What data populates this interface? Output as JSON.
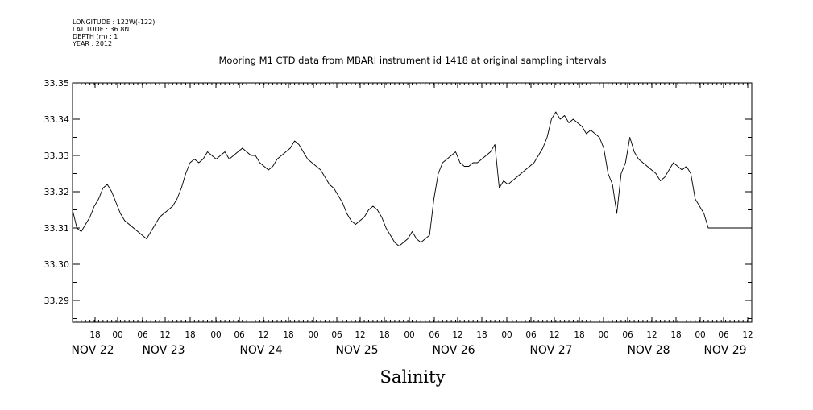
{
  "header": {
    "longitude": "LONGITUDE : 122W(-122)",
    "latitude": "LATITUDE : 36.8N",
    "depth": "DEPTH (m) : 1",
    "year": "YEAR : 2012"
  },
  "colors": {
    "line": "#000000",
    "background": "#ffffff"
  },
  "chart_data": {
    "type": "line",
    "title": "Mooring M1 CTD data from MBARI instrument id 1418 at original sampling intervals",
    "xlabel": "Salinity",
    "ylabel": "",
    "xlim": [
      13,
      169
    ],
    "ylim": [
      33.284,
      33.35
    ],
    "y_ticks": [
      "33.35",
      "33.34",
      "33.33",
      "33.32",
      "33.31",
      "33.30",
      "33.29"
    ],
    "y_tick_values": [
      33.35,
      33.34,
      33.33,
      33.32,
      33.31,
      33.3,
      33.29
    ],
    "x_hour_ticks": [
      {
        "x": 18,
        "label": "18"
      },
      {
        "x": 24,
        "label": "00"
      },
      {
        "x": 30,
        "label": "06"
      },
      {
        "x": 36,
        "label": "12"
      },
      {
        "x": 42,
        "label": "18"
      },
      {
        "x": 48,
        "label": "00"
      },
      {
        "x": 54,
        "label": "06"
      },
      {
        "x": 60,
        "label": "12"
      },
      {
        "x": 66,
        "label": "18"
      },
      {
        "x": 72,
        "label": "00"
      },
      {
        "x": 78,
        "label": "06"
      },
      {
        "x": 84,
        "label": "12"
      },
      {
        "x": 90,
        "label": "18"
      },
      {
        "x": 96,
        "label": "00"
      },
      {
        "x": 102,
        "label": "06"
      },
      {
        "x": 108,
        "label": "12"
      },
      {
        "x": 114,
        "label": "18"
      },
      {
        "x": 120,
        "label": "00"
      },
      {
        "x": 126,
        "label": "06"
      },
      {
        "x": 132,
        "label": "12"
      },
      {
        "x": 138,
        "label": "18"
      },
      {
        "x": 144,
        "label": "00"
      },
      {
        "x": 150,
        "label": "06"
      },
      {
        "x": 156,
        "label": "12"
      },
      {
        "x": 162,
        "label": "18"
      },
      {
        "x": 168,
        "label": "00"
      },
      {
        "x": 174,
        "label": "06"
      },
      {
        "x": 180,
        "label": "12"
      }
    ],
    "x_day_labels": [
      {
        "x": 18,
        "label": "NOV 22"
      },
      {
        "x": 42,
        "label": "NOV 23"
      },
      {
        "x": 66,
        "label": "NOV 24"
      },
      {
        "x": 90,
        "label": "NOV 25"
      },
      {
        "x": 114,
        "label": "NOV 26"
      },
      {
        "x": 138,
        "label": "NOV 27"
      },
      {
        "x": 162,
        "label": "NOV 28"
      },
      {
        "x": 180,
        "label": "NOV 29"
      }
    ],
    "series": [
      {
        "x": [
          13,
          14,
          15,
          16,
          17,
          18,
          19,
          20,
          21,
          22,
          23,
          24,
          25,
          26,
          27,
          28,
          29,
          30,
          31,
          32,
          33,
          34,
          35,
          36,
          37,
          38,
          39,
          40,
          41,
          42,
          43,
          44,
          45,
          46,
          47,
          48,
          49,
          50,
          51,
          52,
          53,
          54,
          55,
          56,
          57,
          58,
          59,
          60,
          61,
          62,
          63,
          64,
          65,
          66,
          67,
          68,
          69,
          70,
          71,
          72,
          73,
          74,
          75,
          76,
          77,
          78,
          79,
          80,
          81,
          82,
          83,
          84,
          85,
          86,
          87,
          88,
          89,
          90,
          91,
          92,
          93,
          94,
          95,
          96,
          97,
          98,
          99,
          100,
          101,
          102,
          103,
          104,
          105,
          106,
          107,
          108,
          109,
          110,
          111,
          112,
          113,
          114,
          115,
          116,
          117,
          118,
          119,
          120,
          121,
          122,
          123,
          124,
          125,
          126,
          127,
          128,
          129,
          130,
          131,
          132,
          133,
          134,
          135,
          136,
          137,
          138,
          139,
          140,
          141,
          142,
          143,
          144,
          145,
          146,
          147,
          148,
          149,
          150,
          151,
          152,
          153,
          154,
          155,
          156,
          157,
          158,
          159,
          160,
          161,
          162,
          163,
          164,
          165,
          166,
          167,
          168,
          169
        ],
        "y": [
          33.315,
          33.31,
          33.309,
          33.311,
          33.313,
          33.316,
          33.318,
          33.321,
          33.322,
          33.32,
          33.317,
          33.314,
          33.312,
          33.311,
          33.31,
          33.309,
          33.308,
          33.307,
          33.309,
          33.311,
          33.313,
          33.314,
          33.315,
          33.316,
          33.318,
          33.321,
          33.325,
          33.328,
          33.329,
          33.328,
          33.329,
          33.331,
          33.33,
          33.329,
          33.33,
          33.331,
          33.329,
          33.33,
          33.331,
          33.332,
          33.331,
          33.33,
          33.33,
          33.328,
          33.327,
          33.326,
          33.327,
          33.329,
          33.33,
          33.331,
          33.332,
          33.334,
          33.333,
          33.331,
          33.329,
          33.328,
          33.327,
          33.326,
          33.324,
          33.322,
          33.321,
          33.319,
          33.317,
          33.314,
          33.312,
          33.311,
          33.312,
          33.313,
          33.315,
          33.316,
          33.315,
          33.313,
          33.31,
          33.308,
          33.306,
          33.305,
          33.306,
          33.307,
          33.309,
          33.307,
          33.306,
          33.307,
          33.308,
          33.318,
          33.325,
          33.328,
          33.329,
          33.33,
          33.331,
          33.328,
          33.327,
          33.327,
          33.328,
          33.328,
          33.329,
          33.33,
          33.331,
          33.333,
          33.321,
          33.323,
          33.322,
          33.323,
          33.324,
          33.325,
          33.326,
          33.327,
          33.328,
          33.33,
          33.332,
          33.335,
          33.34,
          33.342,
          33.34,
          33.341,
          33.339,
          33.34,
          33.339,
          33.338,
          33.336,
          33.337,
          33.336,
          33.335,
          33.332,
          33.325,
          33.322,
          33.314,
          33.325,
          33.328,
          33.335,
          33.331,
          33.329,
          33.328,
          33.327,
          33.326,
          33.325,
          33.323,
          33.324,
          33.326,
          33.328,
          33.327,
          33.326,
          33.327,
          33.325,
          33.318,
          33.316,
          33.314,
          33.31,
          33.31,
          33.31,
          33.31,
          33.31,
          33.31,
          33.31,
          33.31,
          33.31,
          33.31,
          33.31
        ]
      }
    ]
  }
}
